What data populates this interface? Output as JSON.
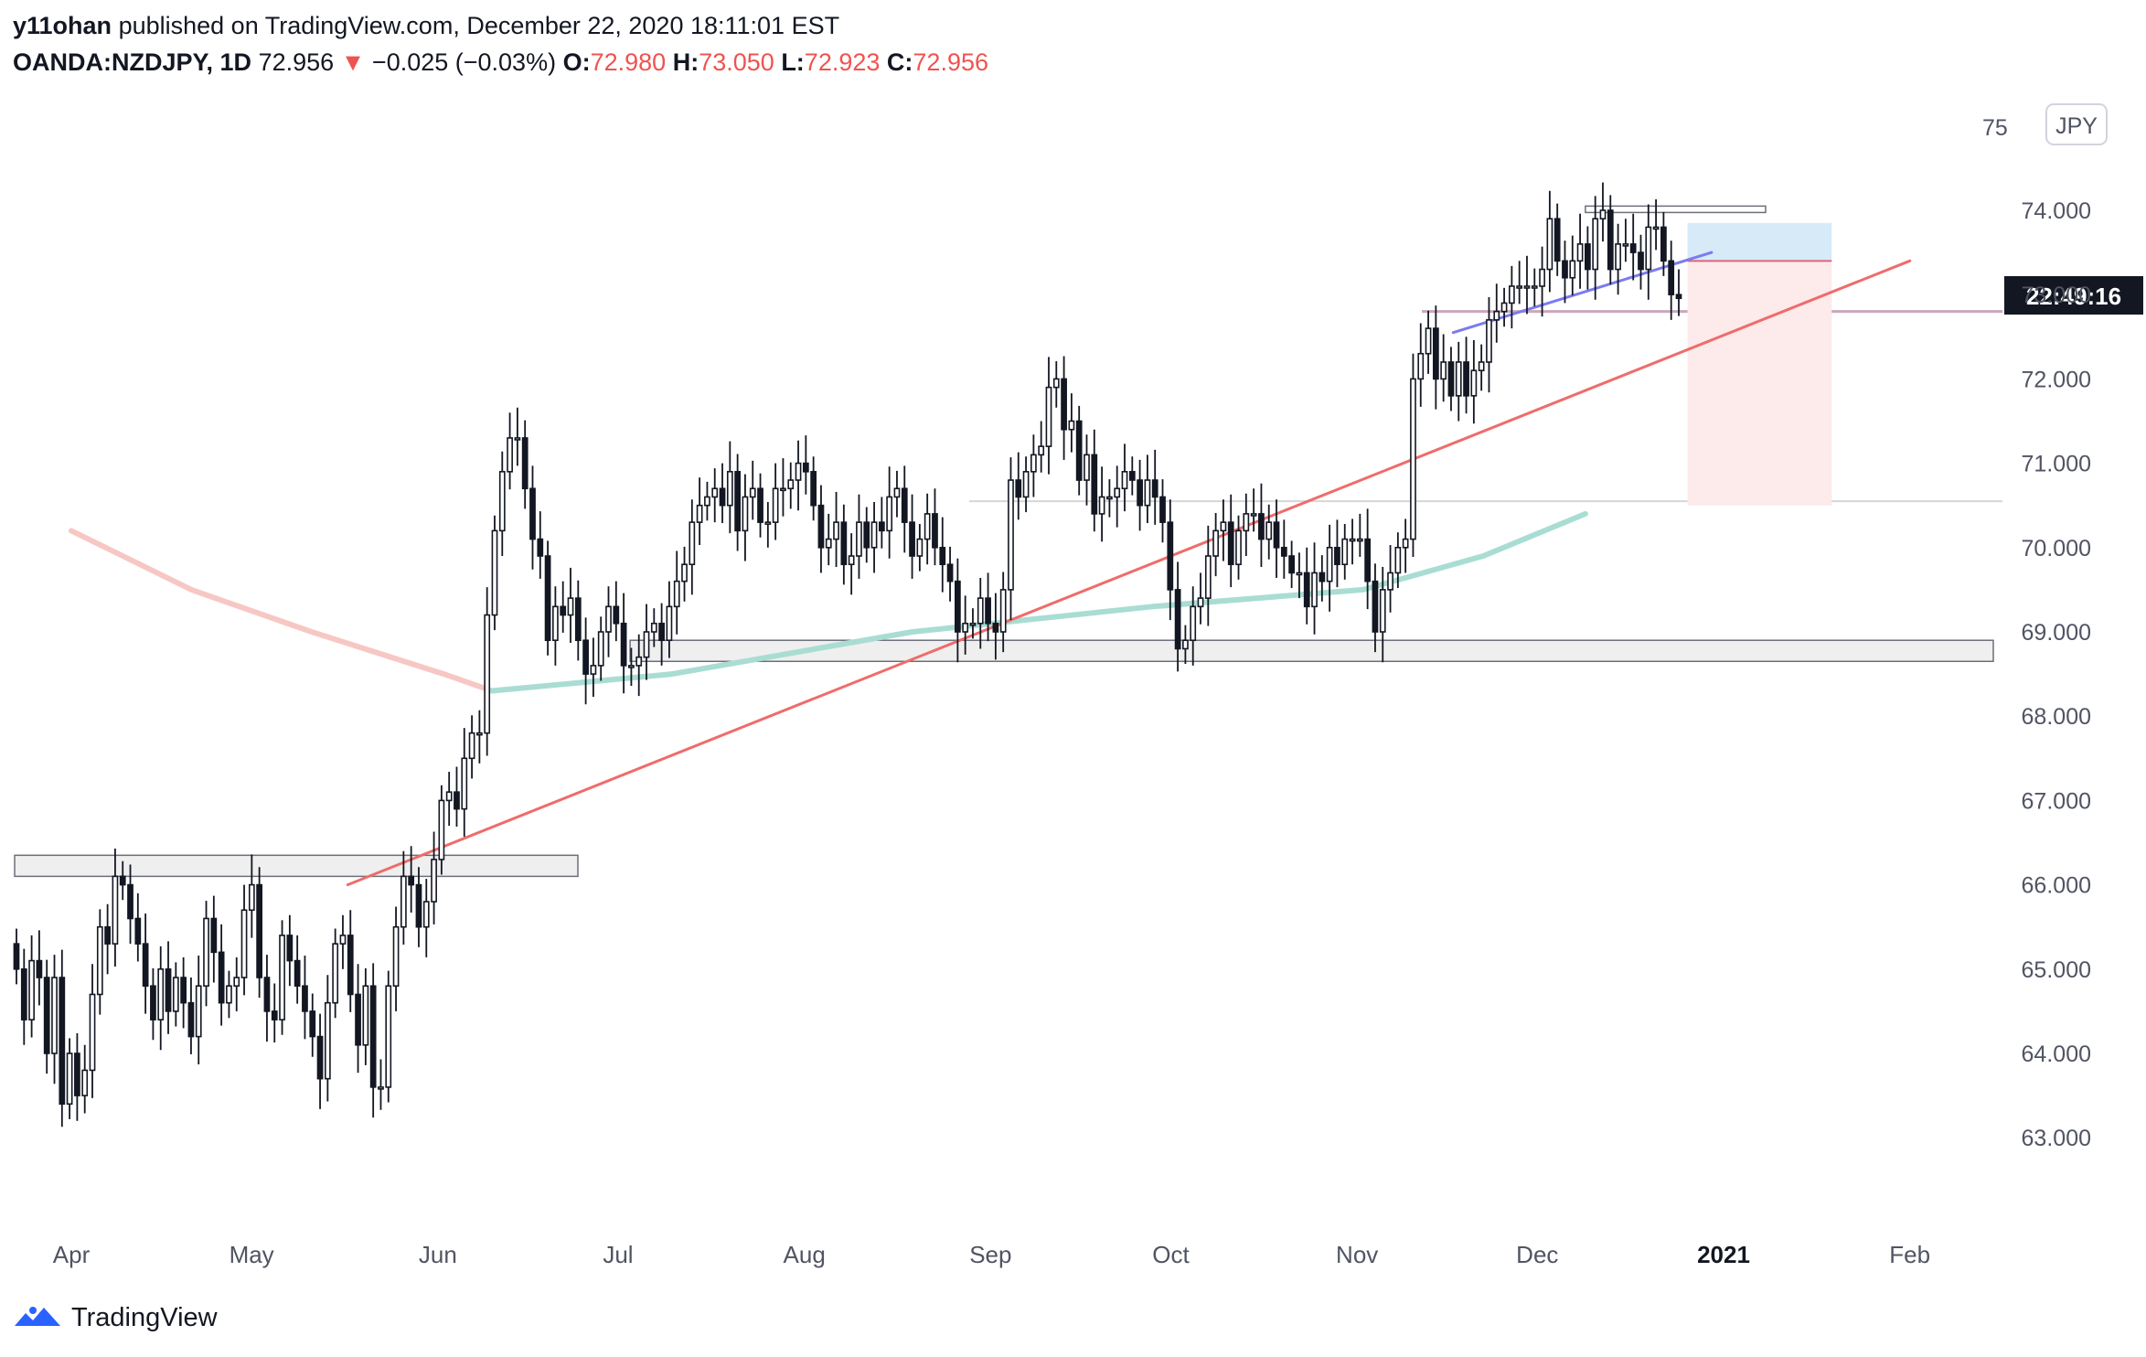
{
  "header": {
    "author": "y11ohan",
    "published_text": "published on TradingView.com, December 22, 2020 18:11:01 EST",
    "symbol": "OANDA:NZDJPY, 1D",
    "last": "72.956",
    "change_arrow": "▼",
    "change": "−0.025 (−0.03%)",
    "open_label": "O:",
    "open": "72.980",
    "high_label": "H:",
    "high": "73.050",
    "low_label": "L:",
    "low": "72.923",
    "close_label": "C:",
    "close": "72.956"
  },
  "price_axis": {
    "currency": "JPY",
    "countdown": "22:49:16",
    "top_partial_label": "75"
  },
  "logo": {
    "text": "TradingView",
    "icon": "tradingview-logo-icon"
  },
  "colors": {
    "candle": "#131722",
    "trendline": "#f06b6b",
    "ma_slow": "#f7c7c4",
    "ma_fast": "#a9ddd3",
    "blue_line": "#7b7bef",
    "zone_fill": "#efefef",
    "zone_border": "#6c6f7a",
    "target_fill": "#d6eaf8",
    "stop_fill": "#fdeaea",
    "red_text": "#ef5350",
    "text_gray": "#505463"
  },
  "chart_data": {
    "type": "candlestick",
    "title": "OANDA:NZDJPY, 1D",
    "ylim": [
      62.6,
      75.0
    ],
    "y_ticks": [
      "75.000",
      "74.000",
      "73.000",
      "72.000",
      "71.000",
      "70.000",
      "69.000",
      "68.000",
      "67.000",
      "66.000",
      "65.000",
      "64.000",
      "63.000"
    ],
    "x_labels": [
      "Apr",
      "May",
      "Jun",
      "Jul",
      "Aug",
      "Sep",
      "Oct",
      "Nov",
      "Dec",
      "2021",
      "Feb"
    ],
    "x_label_bold": "2021",
    "x_label_days": [
      0,
      30,
      61,
      91,
      122,
      153,
      183,
      214,
      244,
      275,
      306
    ],
    "closes": [
      65.0,
      64.4,
      65.1,
      64.9,
      64.0,
      64.9,
      63.4,
      64.0,
      63.5,
      63.8,
      64.7,
      65.5,
      65.3,
      66.1,
      66.0,
      65.6,
      65.3,
      64.8,
      64.4,
      65.0,
      64.5,
      64.9,
      64.6,
      64.2,
      64.8,
      65.6,
      65.2,
      64.6,
      64.8,
      64.9,
      65.7,
      66.0,
      64.9,
      64.5,
      64.4,
      65.4,
      65.1,
      64.8,
      64.5,
      64.2,
      63.7,
      64.6,
      65.3,
      65.4,
      64.7,
      64.1,
      64.8,
      63.6,
      63.6,
      64.8,
      65.5,
      66.1,
      66.0,
      65.5,
      65.8,
      66.3,
      67.0,
      67.1,
      66.9,
      67.5,
      67.8,
      67.8,
      69.2,
      70.2,
      70.9,
      71.3,
      71.3,
      70.7,
      70.1,
      69.9,
      68.9,
      69.3,
      69.2,
      69.4,
      68.9,
      68.5,
      68.6,
      69.0,
      69.3,
      69.1,
      68.6,
      68.6,
      68.7,
      69.0,
      69.1,
      68.9,
      69.3,
      69.6,
      69.8,
      70.3,
      70.5,
      70.6,
      70.7,
      70.5,
      70.9,
      70.2,
      70.6,
      70.7,
      70.3,
      70.3,
      70.7,
      70.7,
      70.8,
      71.0,
      70.9,
      70.5,
      70.0,
      70.1,
      70.3,
      69.8,
      69.9,
      70.3,
      70.0,
      70.3,
      70.2,
      70.6,
      70.7,
      70.3,
      69.9,
      70.1,
      70.4,
      70.0,
      69.8,
      69.6,
      69.0,
      69.1,
      69.1,
      69.4,
      69.1,
      69.0,
      69.5,
      70.8,
      70.6,
      70.9,
      71.1,
      71.2,
      71.9,
      72.0,
      71.4,
      71.5,
      70.8,
      71.1,
      70.4,
      70.6,
      70.6,
      70.7,
      70.9,
      70.8,
      70.5,
      70.8,
      70.6,
      70.3,
      69.5,
      68.8,
      68.9,
      69.3,
      69.4,
      69.9,
      70.2,
      70.3,
      69.8,
      70.2,
      70.4,
      70.4,
      70.1,
      70.3,
      70.0,
      69.9,
      69.7,
      69.7,
      69.3,
      69.7,
      69.6,
      70.0,
      69.8,
      70.1,
      70.1,
      70.1,
      69.6,
      69.0,
      69.5,
      69.7,
      70.0,
      70.1,
      72.0,
      72.3,
      72.6,
      72.0,
      72.2,
      71.8,
      72.2,
      71.8,
      72.1,
      72.2,
      72.7,
      72.8,
      72.9,
      73.1,
      73.1,
      73.1,
      73.1,
      73.3,
      73.9,
      73.4,
      73.2,
      73.4,
      73.6,
      73.3,
      73.9,
      74.0,
      73.3,
      73.6,
      73.6,
      73.5,
      73.3,
      73.8,
      73.8,
      73.4,
      73.0,
      72.956
    ],
    "opens_note": "",
    "trendline": {
      "x_days": [
        46,
        306
      ],
      "y": [
        66.0,
        73.4
      ]
    },
    "moving_average_slow": {
      "x_days": [
        0,
        20,
        40,
        62,
        70
      ],
      "y": [
        70.2,
        69.5,
        69.0,
        68.5,
        68.3
      ]
    },
    "moving_average_fast": {
      "x_days": [
        70,
        100,
        140,
        180,
        215,
        235,
        252
      ],
      "y": [
        68.3,
        68.5,
        69.0,
        69.3,
        69.5,
        69.9,
        70.4
      ]
    },
    "support_zone": {
      "x_start_day": 93,
      "y": [
        68.65,
        68.9
      ]
    },
    "breakout_zone": {
      "x_start_day": -2,
      "x_end_day": 89,
      "y": [
        66.1,
        66.35
      ]
    },
    "resistance_zone": {
      "x_start_day": 252,
      "x_end_day": 282,
      "y": [
        74.0,
        74.05
      ]
    },
    "horizontal_line_1": {
      "y": 72.8
    },
    "horizontal_line_2": {
      "y": 70.55
    },
    "blue_trendline": {
      "x_days": [
        230,
        273
      ],
      "y": [
        72.55,
        73.5
      ]
    },
    "position_tool": {
      "x_start_day": 269,
      "x_end_day": 293,
      "entry": 73.4,
      "target": 73.85,
      "stop": 70.5
    }
  }
}
